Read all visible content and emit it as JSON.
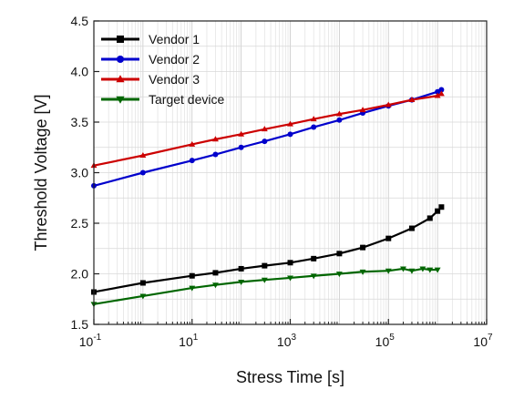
{
  "chart_data": {
    "type": "scatter",
    "xlabel": "Stress Time [s]",
    "ylabel": "Threshold Voltage [V]",
    "xscale": "log",
    "xlim": [
      0.1,
      10000000
    ],
    "ylim": [
      1.5,
      4.5
    ],
    "x_ticks": [
      0.1,
      10,
      1000,
      100000,
      10000000
    ],
    "x_tick_labels": [
      {
        "base": "10",
        "exp": "-1"
      },
      {
        "base": "10",
        "exp": "1"
      },
      {
        "base": "10",
        "exp": "3"
      },
      {
        "base": "10",
        "exp": "5"
      },
      {
        "base": "10",
        "exp": "7"
      }
    ],
    "y_ticks": [
      1.5,
      2.0,
      2.5,
      3.0,
      3.5,
      4.0,
      4.5
    ],
    "y_tick_labels": [
      "1.5",
      "2.0",
      "2.5",
      "3.0",
      "3.5",
      "4.0",
      "4.5"
    ],
    "grid": true,
    "legend_position": "top-left",
    "series": [
      {
        "name": "Vendor 1",
        "color": "#000000",
        "marker": "square",
        "x": [
          0.1,
          1,
          10,
          30,
          100,
          300,
          1000,
          3000,
          10000,
          30000,
          100000,
          300000,
          700000,
          1000000,
          1200000
        ],
        "y": [
          1.82,
          1.91,
          1.98,
          2.01,
          2.05,
          2.08,
          2.11,
          2.15,
          2.2,
          2.26,
          2.35,
          2.45,
          2.55,
          2.62,
          2.66
        ]
      },
      {
        "name": "Vendor 2",
        "color": "#0000cc",
        "marker": "circle",
        "x": [
          0.1,
          1,
          10,
          30,
          100,
          300,
          1000,
          3000,
          10000,
          30000,
          100000,
          300000,
          1000000,
          1200000
        ],
        "y": [
          2.87,
          3.0,
          3.12,
          3.18,
          3.25,
          3.31,
          3.38,
          3.45,
          3.52,
          3.59,
          3.66,
          3.72,
          3.8,
          3.82
        ]
      },
      {
        "name": "Vendor 3",
        "color": "#cc0000",
        "marker": "triangle-up",
        "x": [
          0.1,
          1,
          10,
          30,
          100,
          300,
          1000,
          3000,
          10000,
          30000,
          100000,
          300000,
          1000000,
          1200000
        ],
        "y": [
          3.07,
          3.17,
          3.28,
          3.33,
          3.38,
          3.43,
          3.48,
          3.53,
          3.58,
          3.62,
          3.67,
          3.72,
          3.76,
          3.78
        ]
      },
      {
        "name": "Target device",
        "color": "#006600",
        "marker": "triangle-down",
        "x": [
          0.1,
          1,
          10,
          30,
          100,
          300,
          1000,
          3000,
          10000,
          30000,
          100000,
          200000,
          300000,
          500000,
          700000,
          1000000
        ],
        "y": [
          1.7,
          1.78,
          1.86,
          1.89,
          1.92,
          1.94,
          1.96,
          1.98,
          2.0,
          2.02,
          2.03,
          2.05,
          2.03,
          2.05,
          2.04,
          2.04
        ]
      }
    ]
  }
}
